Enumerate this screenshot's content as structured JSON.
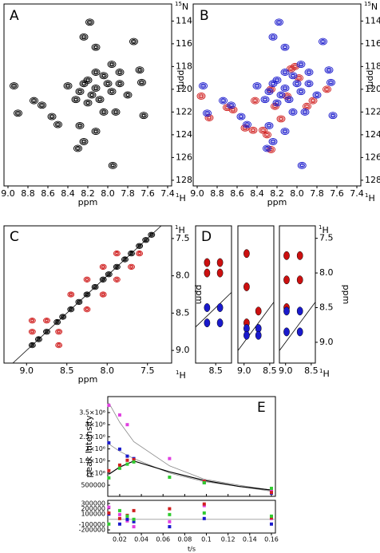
{
  "chart_data": [
    {
      "type": "contour",
      "label": "A",
      "xlabel": "ppm",
      "ylabel": "ppm",
      "x_mass": "1",
      "x_nucleus": "H",
      "y_mass": "15",
      "y_nucleus": "N",
      "xlim": [
        9.04,
        7.36
      ],
      "ylim": [
        112.5,
        128.5
      ],
      "xticks": [
        {
          "value": 9,
          "label": "9.0"
        },
        8.8,
        8.6,
        8.4,
        8.2,
        {
          "value": 8,
          "label": "8.0"
        },
        7.8,
        7.6,
        7.4
      ],
      "yticks": [
        114,
        116,
        118,
        120,
        122,
        124,
        126,
        128
      ],
      "series": [
        {
          "color": "#000000",
          "x": [
            8.18,
            8.24,
            8.12,
            7.74,
            8.94,
            8.9,
            8.74,
            8.66,
            8.56,
            8.5,
            8.28,
            8.24,
            8.3,
            8.12,
            7.95,
            7.68,
            7.66,
            7.64,
            8.2,
            8.12,
            8.28,
            8.04,
            7.96,
            7.88,
            8.32,
            8.08,
            7.96,
            7.88,
            8.2,
            8.4,
            7.8,
            8.04,
            7.92,
            8.12,
            8.24,
            8.0,
            8.16
          ],
          "values": [
            114.1,
            115.4,
            116.3,
            115.8,
            119.7,
            122.1,
            121.0,
            121.4,
            122.4,
            123.1,
            123.2,
            124.6,
            125.2,
            123.7,
            126.7,
            118.3,
            119.4,
            122.3,
            119.2,
            119.9,
            120.2,
            118.8,
            120.2,
            119.5,
            120.9,
            120.9,
            117.8,
            118.5,
            121.2,
            119.7,
            120.5,
            122.0,
            122.0,
            118.5,
            119.5,
            119.5,
            120.5
          ]
        }
      ]
    },
    {
      "type": "contour",
      "label": "B",
      "xlabel": "ppm",
      "ylabel": "ppm",
      "x_mass": "1",
      "x_nucleus": "H",
      "y_mass": "15",
      "y_nucleus": "N",
      "xlim": [
        9.04,
        7.36
      ],
      "ylim": [
        112.5,
        128.5
      ],
      "xticks": [
        {
          "value": 9,
          "label": "9.0"
        },
        8.8,
        8.6,
        8.4,
        8.2,
        {
          "value": 8,
          "label": "8.0"
        },
        7.8,
        7.6,
        7.4
      ],
      "yticks": [
        114,
        116,
        118,
        120,
        122,
        124,
        126,
        128
      ],
      "series": [
        {
          "color": "#d02020",
          "x": [
            8.96,
            8.88,
            8.7,
            8.64,
            8.52,
            8.3,
            8.34,
            8.22,
            8.1,
            8.06,
            7.98,
            7.9,
            8.16,
            8.26,
            8.42,
            7.84,
            8.02,
            8.44,
            8.26,
            7.7
          ],
          "values": [
            120.6,
            122.5,
            121.6,
            121.8,
            123.4,
            124.0,
            123.6,
            121.5,
            120.6,
            118.2,
            119.0,
            121.5,
            122.6,
            120.0,
            121.0,
            121.0,
            118.0,
            123.6,
            125.3,
            120.0
          ]
        },
        {
          "color": "#1a1acc",
          "x": [
            8.18,
            8.24,
            8.12,
            7.74,
            8.94,
            8.9,
            8.74,
            8.66,
            8.56,
            8.5,
            8.28,
            8.24,
            8.3,
            8.12,
            7.95,
            7.68,
            7.66,
            7.64,
            8.2,
            8.12,
            8.28,
            8.04,
            7.96,
            7.88,
            8.32,
            8.08,
            7.96,
            7.88,
            8.2,
            8.4,
            7.8,
            8.04,
            7.92,
            8.12,
            8.24,
            8.0,
            8.16
          ],
          "values": [
            114.1,
            115.4,
            116.3,
            115.8,
            119.7,
            122.1,
            121.0,
            121.4,
            122.4,
            123.1,
            123.2,
            124.6,
            125.2,
            123.7,
            126.7,
            118.3,
            119.4,
            122.3,
            119.2,
            119.9,
            120.2,
            118.8,
            120.2,
            119.5,
            120.9,
            120.9,
            117.8,
            118.5,
            121.2,
            119.7,
            120.5,
            122.0,
            122.0,
            118.5,
            119.5,
            119.5,
            120.5
          ]
        }
      ]
    },
    {
      "type": "contour",
      "label": "C",
      "xlabel": "ppm",
      "ylabel": "ppm",
      "x_mass": "1",
      "x_nucleus": "H",
      "y_mass": "1",
      "y_nucleus": "H",
      "diagonal": true,
      "xlim": [
        9.28,
        7.2
      ],
      "ylim": [
        7.33,
        9.17
      ],
      "xticks": [
        {
          "value": 9,
          "label": "9.0"
        },
        8.5,
        {
          "value": 8,
          "label": "8.0"
        },
        7.5
      ],
      "yticks": [
        7.5,
        {
          "value": 8,
          "label": "8.0"
        },
        8.5,
        {
          "value": 9,
          "label": "9.0"
        }
      ],
      "series": [
        {
          "color": "#000000",
          "x": [
            8.93,
            8.85,
            8.75,
            8.62,
            8.55,
            8.45,
            8.35,
            8.25,
            8.15,
            8.05,
            7.98,
            7.88,
            7.78,
            7.7,
            7.6,
            7.52,
            7.45
          ],
          "values": [
            8.93,
            8.85,
            8.75,
            8.62,
            8.55,
            8.45,
            8.35,
            8.25,
            8.15,
            8.05,
            7.98,
            7.88,
            7.78,
            7.7,
            7.6,
            7.52,
            7.45
          ]
        },
        {
          "color": "#d02020",
          "x": [
            8.93,
            8.6,
            8.93,
            8.6,
            8.75,
            8.25,
            8.45,
            8.05,
            8.25,
            7.88,
            8.05,
            7.7,
            7.88,
            7.6
          ],
          "values": [
            8.6,
            8.93,
            8.75,
            8.75,
            8.6,
            8.45,
            8.25,
            8.25,
            8.05,
            8.05,
            7.88,
            7.88,
            7.7,
            7.7
          ]
        }
      ]
    },
    {
      "type": "strips",
      "label": "D",
      "ylabel": "ppm",
      "x_mass": "1",
      "x_nucleus": "H",
      "y_mass": "1",
      "y_nucleus": "H",
      "diagonal": true,
      "filled": true,
      "ylim": [
        7.32,
        9.3
      ],
      "yticks": [
        7.5,
        {
          "value": 8,
          "label": "8.0"
        },
        8.5,
        {
          "value": 9,
          "label": "9.0"
        }
      ],
      "strips": [
        {
          "xlim": [
            8.78,
            8.28
          ],
          "xticks": [
            8.5
          ],
          "series": [
            {
              "color": "#cc1010",
              "x": [
                8.62,
                8.44,
                8.62,
                8.44
              ],
              "values": [
                7.85,
                7.85,
                8.0,
                8.0
              ]
            },
            {
              "color": "#1a1acc",
              "x": [
                8.62,
                8.44,
                8.62,
                8.44
              ],
              "values": [
                8.5,
                8.5,
                8.72,
                8.72
              ]
            }
          ]
        },
        {
          "xlim": [
            9.12,
            8.42
          ],
          "xticks": [
            {
              "value": 9,
              "label": "9.0"
            },
            8.5
          ],
          "series": [
            {
              "color": "#cc1010",
              "x": [
                8.95,
                8.95,
                8.95,
                8.72
              ],
              "values": [
                7.72,
                8.2,
                8.72,
                8.55
              ]
            },
            {
              "color": "#1a1acc",
              "x": [
                8.95,
                8.72,
                8.95,
                8.72
              ],
              "values": [
                8.8,
                8.8,
                8.9,
                8.9
              ]
            }
          ]
        },
        {
          "xlim": [
            9.12,
            8.42
          ],
          "xticks": [
            {
              "value": 9,
              "label": "9.0"
            },
            8.5
          ],
          "series": [
            {
              "color": "#cc1010",
              "x": [
                8.98,
                8.72,
                8.98,
                8.72,
                8.98
              ],
              "values": [
                7.75,
                7.75,
                8.1,
                8.1,
                8.5
              ]
            },
            {
              "color": "#1a1acc",
              "x": [
                8.98,
                8.72,
                8.98,
                8.72
              ],
              "values": [
                8.55,
                8.55,
                8.85,
                8.85
              ]
            }
          ]
        }
      ]
    },
    {
      "type": "scatter",
      "label": "E",
      "xlabel": "t/s",
      "ylabel": "peak Intensity",
      "xlim": [
        0.009,
        0.1637
      ],
      "ylim": [
        40000,
        4160000
      ],
      "xticks": [
        0.02,
        0.04,
        0.06,
        0.08,
        0.1,
        0.12,
        0.14,
        0.16
      ],
      "yticks": [
        500000,
        {
          "value": 1000000,
          "label": "1×10⁶"
        },
        {
          "value": 1500000,
          "label": "1.5×10⁶"
        },
        {
          "value": 2000000,
          "label": "2×10⁶"
        },
        {
          "value": 2500000,
          "label": "2.5×10⁶"
        },
        {
          "value": 3000000,
          "label": "3×10⁶"
        },
        {
          "value": 3500000,
          "label": "3.5×10⁶"
        }
      ],
      "series": [
        {
          "color": "#e040e0",
          "x": [
            0.01,
            0.02,
            0.027,
            0.066,
            0.098,
            0.16
          ],
          "values": [
            3800000,
            3400000,
            3000000,
            1600000,
            660000,
            270000
          ]
        },
        {
          "color": "#1a1acc",
          "x": [
            0.01,
            0.02,
            0.027,
            0.033,
            0.098,
            0.16
          ],
          "values": [
            2250000,
            1990000,
            1700000,
            1600000,
            600000,
            170000
          ]
        },
        {
          "color": "#d02020",
          "x": [
            0.01,
            0.02,
            0.027,
            0.033,
            0.098,
            0.16
          ],
          "values": [
            1100000,
            1330000,
            1530000,
            1560000,
            660000,
            200000
          ]
        },
        {
          "color": "#30cc30",
          "x": [
            0.01,
            0.02,
            0.027,
            0.033,
            0.066,
            0.098,
            0.16
          ],
          "values": [
            800000,
            1200000,
            1370000,
            1460000,
            830000,
            600000,
            370000
          ]
        }
      ],
      "fits": [
        {
          "color": "#888888",
          "x": [
            0.01,
            0.02,
            0.033,
            0.066,
            0.098,
            0.13,
            0.16
          ],
          "values": [
            3900000,
            3100000,
            2300000,
            1300000,
            750000,
            500000,
            300000
          ]
        },
        {
          "color": "#888888",
          "x": [
            0.01,
            0.02,
            0.033,
            0.066,
            0.098,
            0.13,
            0.16
          ],
          "values": [
            2200000,
            1900000,
            1600000,
            1000000,
            650000,
            450000,
            250000
          ]
        },
        {
          "color": "#000000",
          "x": [
            0.01,
            0.02,
            0.033,
            0.066,
            0.098,
            0.13,
            0.16
          ],
          "values": [
            950000,
            1250000,
            1500000,
            1050000,
            700000,
            450000,
            300000
          ]
        }
      ],
      "residuals": {
        "ylim": [
          -260000,
          360000
        ],
        "yticks": [
          300000,
          200000,
          100000,
          -100000,
          -200000
        ],
        "series": [
          {
            "color": "#e040e0",
            "x": [
              0.01,
              0.02,
              0.027,
              0.033,
              0.066,
              0.098,
              0.16
            ],
            "values": [
              230000,
              90000,
              -30000,
              -140000,
              -45000,
              260000,
              15000
            ]
          },
          {
            "color": "#1a1acc",
            "x": [
              0.01,
              0.02,
              0.027,
              0.033,
              0.066,
              0.098,
              0.16
            ],
            "values": [
              100000,
              -90000,
              0,
              -45000,
              -140000,
              15000,
              -90000
            ]
          },
          {
            "color": "#d02020",
            "x": [
              0.01,
              0.02,
              0.027,
              0.033,
              0.066,
              0.098,
              0.16
            ],
            "values": [
              120000,
              15000,
              75000,
              165000,
              200000,
              290000,
              30000
            ]
          },
          {
            "color": "#30cc30",
            "x": [
              0.01,
              0.02,
              0.027,
              0.033,
              0.066,
              0.098,
              0.16
            ],
            "values": [
              -90000,
              165000,
              60000,
              0,
              90000,
              120000,
              60000
            ]
          }
        ]
      }
    }
  ]
}
